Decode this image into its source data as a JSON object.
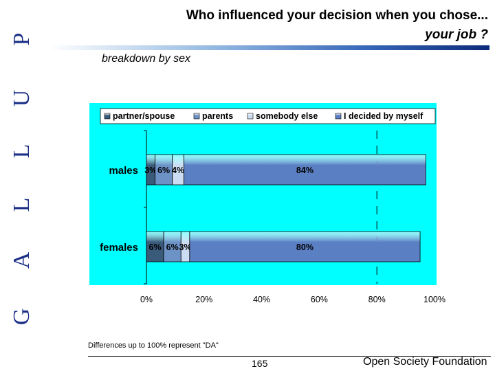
{
  "brand": {
    "letters": [
      "G",
      "A",
      "L",
      "L",
      "U",
      "P"
    ]
  },
  "header": {
    "title_line1": "Who influenced your decision when you chose...",
    "title_line2": "your job ?",
    "subtitle": "breakdown by sex"
  },
  "chart_data": {
    "type": "bar",
    "orientation": "horizontal",
    "stacked": true,
    "categories": [
      "males",
      "females"
    ],
    "series": [
      {
        "name": "partner/spouse",
        "values": [
          3,
          6
        ],
        "labels": [
          "3%",
          "6%"
        ]
      },
      {
        "name": "parents",
        "values": [
          6,
          6
        ],
        "labels": [
          "6%",
          "6%"
        ]
      },
      {
        "name": "somebody else",
        "values": [
          4,
          3
        ],
        "labels": [
          "4%",
          "3%"
        ]
      },
      {
        "name": "I decided by myself",
        "values": [
          84,
          80
        ],
        "labels": [
          "84%",
          "80%"
        ]
      }
    ],
    "xlim": [
      0,
      100
    ],
    "xticks": [
      "0%",
      "20%",
      "40%",
      "60%",
      "80%",
      "100%"
    ],
    "colors": {
      "partner/spouse": "#3a5a7a",
      "parents": "#6d92c6",
      "somebody else": "#ccdcf2",
      "I decided by myself": "#5b7fc3",
      "plot_background": "#00ffff"
    },
    "reference_line": 80
  },
  "footer": {
    "note": "Differences up to 100% represent \"DA\"",
    "page_number": "165",
    "organization": "Open Society Foundation"
  }
}
